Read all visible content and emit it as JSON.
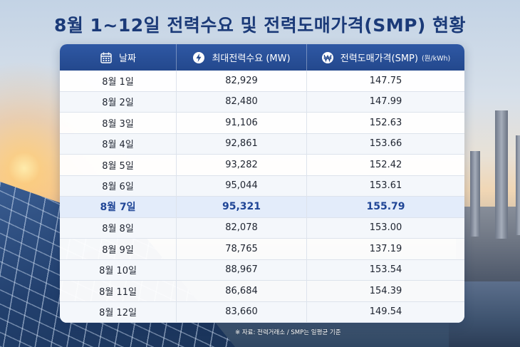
{
  "title": "8월 1~12일 전력수요 및 전력도매가격(SMP) 현황",
  "table": {
    "headers": {
      "date": {
        "label": "날짜",
        "icon": "calendar-icon"
      },
      "demand": {
        "label": "최대전력수요 (MW)",
        "icon": "lightning-bolt-icon"
      },
      "smp": {
        "label": "전력도매가격(SMP)",
        "unit": "(원/kWh)",
        "icon": "won-sign-icon"
      }
    },
    "highlight_row": 6,
    "rows": [
      {
        "date": "8월 1일",
        "demand": "82,929",
        "smp": "147.75"
      },
      {
        "date": "8월 2일",
        "demand": "82,480",
        "smp": "147.99"
      },
      {
        "date": "8월 3일",
        "demand": "91,106",
        "smp": "152.63"
      },
      {
        "date": "8월 4일",
        "demand": "92,861",
        "smp": "153.66"
      },
      {
        "date": "8월 5일",
        "demand": "93,282",
        "smp": "152.42"
      },
      {
        "date": "8월 6일",
        "demand": "95,044",
        "smp": "153.61"
      },
      {
        "date": "8월 7일",
        "demand": "95,321",
        "smp": "155.79"
      },
      {
        "date": "8월 8일",
        "demand": "82,078",
        "smp": "153.00"
      },
      {
        "date": "8월 9일",
        "demand": "78,765",
        "smp": "137.19"
      },
      {
        "date": "8월 10일",
        "demand": "88,967",
        "smp": "153.54"
      },
      {
        "date": "8월 11일",
        "demand": "86,684",
        "smp": "154.39"
      },
      {
        "date": "8월 12일",
        "demand": "83,660",
        "smp": "149.54"
      }
    ]
  },
  "source": "※ 자료: 전력거래소 / SMP는 일평균 기준",
  "colors": {
    "title": "#1b3a78",
    "header_bg": "#2a51a0",
    "highlight_text": "#1f4596",
    "highlight_bg": "#e3ecfa"
  }
}
